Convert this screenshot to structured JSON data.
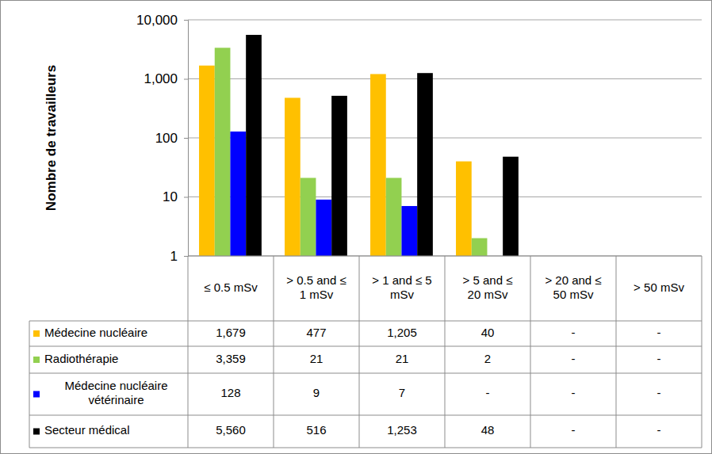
{
  "chart_data": {
    "type": "bar",
    "y_label": "Nombre de travailleurs",
    "log": "y",
    "grid": true,
    "ylim": [
      1,
      10000
    ],
    "yticks": [
      1,
      10,
      100,
      {
        "value": 1000,
        "label": "1,000"
      },
      {
        "value": 10000,
        "label": "10,000"
      }
    ],
    "categories": [
      "≤ 0.5 mSv",
      "> 0.5 and ≤ 1 mSv",
      "> 1 and ≤ 5 mSv",
      "> 5 and ≤ 20 mSv",
      "> 20 and ≤ 50 mSv",
      "> 50 mSv"
    ],
    "series": [
      {
        "name": "Médecine nucléaire",
        "color": "#ffc000",
        "values": [
          1679,
          477,
          1205,
          40,
          null,
          null
        ],
        "value_labels": [
          "1,679",
          "477",
          "1,205",
          "40",
          "-",
          "-"
        ]
      },
      {
        "name": "Radiothérapie",
        "color": "#92d050",
        "values": [
          3359,
          21,
          21,
          2,
          null,
          null
        ],
        "value_labels": [
          "3,359",
          "21",
          "21",
          "2",
          "-",
          "-"
        ]
      },
      {
        "name": "Médecine nucléaire vétérinaire",
        "color": "#0000ff",
        "values": [
          128,
          9,
          7,
          null,
          null,
          null
        ],
        "value_labels": [
          "128",
          "9",
          "7",
          "-",
          "-",
          "-"
        ]
      },
      {
        "name": "Secteur médical",
        "color": "#000000",
        "values": [
          5560,
          516,
          1253,
          48,
          null,
          null
        ],
        "value_labels": [
          "5,560",
          "516",
          "1,253",
          "48",
          "-",
          "-"
        ]
      }
    ]
  }
}
